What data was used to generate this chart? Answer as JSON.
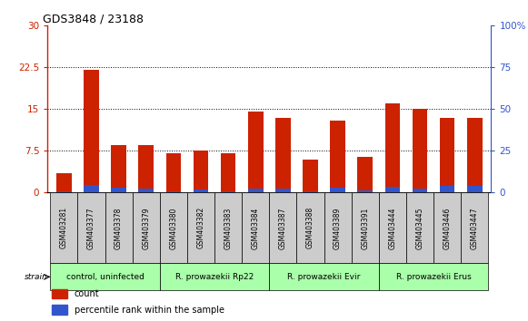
{
  "title": "GDS3848 / 23188",
  "samples": [
    "GSM403281",
    "GSM403377",
    "GSM403378",
    "GSM403379",
    "GSM403380",
    "GSM403382",
    "GSM403383",
    "GSM403384",
    "GSM403387",
    "GSM403388",
    "GSM403389",
    "GSM403391",
    "GSM403444",
    "GSM403445",
    "GSM403446",
    "GSM403447"
  ],
  "count_values": [
    3.5,
    22.0,
    8.5,
    8.5,
    7.0,
    7.5,
    7.0,
    14.5,
    13.5,
    6.0,
    13.0,
    6.5,
    16.0,
    15.0,
    13.5,
    13.5
  ],
  "percentile_values": [
    1.0,
    4.5,
    3.0,
    2.5,
    0.5,
    2.0,
    0.5,
    2.5,
    2.5,
    0.5,
    3.0,
    1.5,
    3.5,
    2.5,
    4.0,
    4.0
  ],
  "group_spans": [
    {
      "label": "control, uninfected",
      "start": 0,
      "end": 3
    },
    {
      "label": "R. prowazekii Rp22",
      "start": 4,
      "end": 7
    },
    {
      "label": "R. prowazekii Evir",
      "start": 8,
      "end": 11
    },
    {
      "label": "R. prowazekii Erus",
      "start": 12,
      "end": 15
    }
  ],
  "ylim_left": [
    0,
    30
  ],
  "ylim_right": [
    0,
    100
  ],
  "yticks_left": [
    0,
    7.5,
    15,
    22.5,
    30
  ],
  "yticks_right": [
    0,
    25,
    50,
    75,
    100
  ],
  "ytick_labels_left": [
    "0",
    "7.5",
    "15",
    "22.5",
    "30"
  ],
  "ytick_labels_right": [
    "0",
    "25",
    "50",
    "75",
    "100%"
  ],
  "bar_color_red": "#cc2200",
  "bar_color_blue": "#3355cc",
  "tick_color_red": "#cc2200",
  "tick_color_blue": "#3355cc",
  "strain_label": "strain",
  "legend_count": "count",
  "legend_percentile": "percentile rank within the sample",
  "group_bg_color": "#aaffaa",
  "sample_label_bg": "#cccccc",
  "fig_bg": "#ffffff"
}
